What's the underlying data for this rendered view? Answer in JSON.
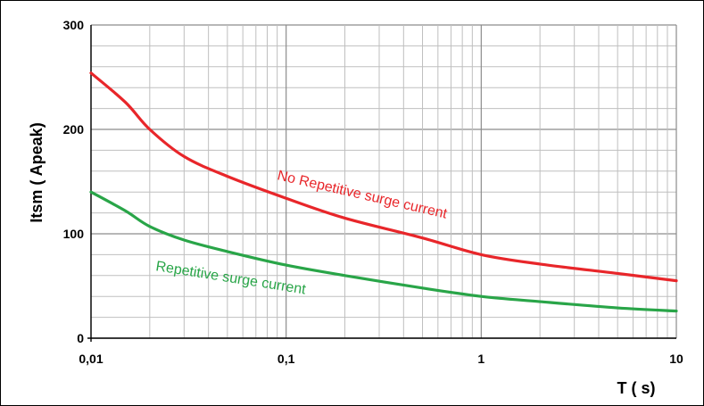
{
  "chart_data": {
    "type": "line",
    "title": "",
    "xlabel": "T ( s)",
    "ylabel": "Itsm ( Apeak)",
    "x_scale": "log",
    "xlim": [
      0.01,
      10
    ],
    "ylim": [
      0,
      300
    ],
    "x_ticks": [
      {
        "value": 0.01,
        "label": "0,01"
      },
      {
        "value": 0.1,
        "label": "0,1"
      },
      {
        "value": 1,
        "label": "1"
      },
      {
        "value": 10,
        "label": "10"
      }
    ],
    "y_ticks": [
      {
        "value": 0,
        "label": "0"
      },
      {
        "value": 100,
        "label": "100"
      },
      {
        "value": 200,
        "label": "200"
      },
      {
        "value": 300,
        "label": "300"
      }
    ],
    "grid": true,
    "series": [
      {
        "name": "No Repetitive surge current",
        "color": "#e8262a",
        "x": [
          0.01,
          0.015,
          0.02,
          0.03,
          0.05,
          0.1,
          0.2,
          0.5,
          1,
          2,
          5,
          10
        ],
        "y": [
          254,
          226,
          200,
          174,
          155,
          134,
          115,
          96,
          80,
          71,
          62,
          55
        ]
      },
      {
        "name": "Repetitive surge current",
        "color": "#29a548",
        "x": [
          0.01,
          0.015,
          0.02,
          0.03,
          0.05,
          0.1,
          0.2,
          0.5,
          1,
          2,
          5,
          10
        ],
        "y": [
          140,
          122,
          107,
          94,
          83,
          70,
          60,
          48,
          40,
          35,
          29,
          26
        ]
      }
    ]
  }
}
